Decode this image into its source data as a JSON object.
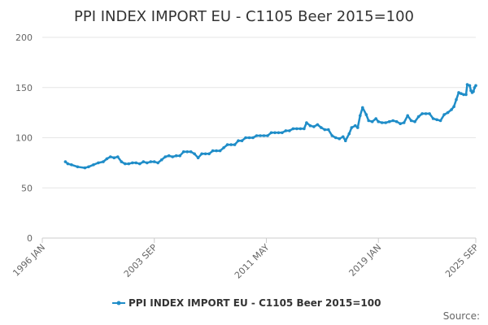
{
  "chart_data": {
    "type": "line",
    "title": "PPI INDEX IMPORT EU - C1105 Beer 2015=100",
    "xlabel": "",
    "ylabel": "",
    "ylim": [
      0,
      200
    ],
    "yticks": [
      "0",
      "50",
      "100",
      "150",
      "200"
    ],
    "xlim": [
      "1996-01",
      "2025-09"
    ],
    "xticks": [
      {
        "label": "1996 JAN",
        "date": "1996-01"
      },
      {
        "label": "2003 SEP",
        "date": "2003-09"
      },
      {
        "label": "2011 MAY",
        "date": "2011-05"
      },
      {
        "label": "2019 JAN",
        "date": "2019-01"
      },
      {
        "label": "2025 SEP",
        "date": "2025-09"
      }
    ],
    "grid": true,
    "legend_position": "bottom",
    "line_color": "#1f8dc8",
    "series": [
      {
        "name": "PPI INDEX IMPORT EU - C1105 Beer 2015=100",
        "points": [
          [
            "1997-08",
            76
          ],
          [
            "1997-10",
            74
          ],
          [
            "1998-01",
            73
          ],
          [
            "1998-06",
            71
          ],
          [
            "1998-12",
            70
          ],
          [
            "1999-03",
            71
          ],
          [
            "1999-07",
            73
          ],
          [
            "1999-11",
            75
          ],
          [
            "2000-03",
            76
          ],
          [
            "2000-06",
            79
          ],
          [
            "2000-09",
            81
          ],
          [
            "2000-12",
            80
          ],
          [
            "2001-03",
            81
          ],
          [
            "2001-06",
            76
          ],
          [
            "2001-09",
            74
          ],
          [
            "2001-12",
            74
          ],
          [
            "2002-03",
            75
          ],
          [
            "2002-06",
            75
          ],
          [
            "2002-09",
            74
          ],
          [
            "2002-12",
            76
          ],
          [
            "2003-03",
            75
          ],
          [
            "2003-06",
            76
          ],
          [
            "2003-09",
            76
          ],
          [
            "2003-12",
            75
          ],
          [
            "2004-03",
            78
          ],
          [
            "2004-06",
            81
          ],
          [
            "2004-09",
            82
          ],
          [
            "2004-12",
            81
          ],
          [
            "2005-03",
            82
          ],
          [
            "2005-06",
            82
          ],
          [
            "2005-09",
            86
          ],
          [
            "2005-12",
            86
          ],
          [
            "2006-03",
            86
          ],
          [
            "2006-06",
            84
          ],
          [
            "2006-09",
            80
          ],
          [
            "2006-12",
            84
          ],
          [
            "2007-03",
            84
          ],
          [
            "2007-06",
            84
          ],
          [
            "2007-09",
            87
          ],
          [
            "2007-12",
            87
          ],
          [
            "2008-03",
            87
          ],
          [
            "2008-06",
            90
          ],
          [
            "2008-09",
            93
          ],
          [
            "2008-12",
            93
          ],
          [
            "2009-03",
            93
          ],
          [
            "2009-06",
            97
          ],
          [
            "2009-09",
            97
          ],
          [
            "2009-12",
            100
          ],
          [
            "2010-03",
            100
          ],
          [
            "2010-06",
            100
          ],
          [
            "2010-09",
            102
          ],
          [
            "2010-12",
            102
          ],
          [
            "2011-03",
            102
          ],
          [
            "2011-06",
            102
          ],
          [
            "2011-09",
            105
          ],
          [
            "2011-12",
            105
          ],
          [
            "2012-03",
            105
          ],
          [
            "2012-06",
            105
          ],
          [
            "2012-09",
            107
          ],
          [
            "2012-12",
            107
          ],
          [
            "2013-03",
            109
          ],
          [
            "2013-06",
            109
          ],
          [
            "2013-09",
            109
          ],
          [
            "2013-12",
            109
          ],
          [
            "2014-02",
            115
          ],
          [
            "2014-05",
            112
          ],
          [
            "2014-08",
            111
          ],
          [
            "2014-11",
            113
          ],
          [
            "2015-02",
            110
          ],
          [
            "2015-05",
            108
          ],
          [
            "2015-08",
            108
          ],
          [
            "2015-11",
            102
          ],
          [
            "2016-02",
            100
          ],
          [
            "2016-05",
            99
          ],
          [
            "2016-08",
            101
          ],
          [
            "2016-10",
            97
          ],
          [
            "2017-01",
            104
          ],
          [
            "2017-03",
            110
          ],
          [
            "2017-06",
            112
          ],
          [
            "2017-08",
            110
          ],
          [
            "2017-10",
            122
          ],
          [
            "2017-12",
            130
          ],
          [
            "2018-03",
            123
          ],
          [
            "2018-05",
            117
          ],
          [
            "2018-08",
            116
          ],
          [
            "2018-11",
            119
          ],
          [
            "2019-01",
            116
          ],
          [
            "2019-04",
            115
          ],
          [
            "2019-07",
            115
          ],
          [
            "2019-10",
            116
          ],
          [
            "2020-01",
            117
          ],
          [
            "2020-04",
            116
          ],
          [
            "2020-07",
            114
          ],
          [
            "2020-10",
            115
          ],
          [
            "2021-01",
            122
          ],
          [
            "2021-04",
            117
          ],
          [
            "2021-07",
            116
          ],
          [
            "2021-10",
            121
          ],
          [
            "2022-01",
            124
          ],
          [
            "2022-04",
            124
          ],
          [
            "2022-07",
            124
          ],
          [
            "2022-10",
            119
          ],
          [
            "2023-01",
            118
          ],
          [
            "2023-04",
            117
          ],
          [
            "2023-07",
            123
          ],
          [
            "2023-10",
            125
          ],
          [
            "2024-01",
            128
          ],
          [
            "2024-03",
            131
          ],
          [
            "2024-05",
            138
          ],
          [
            "2024-07",
            145
          ],
          [
            "2024-09",
            144
          ],
          [
            "2024-11",
            143
          ],
          [
            "2025-01",
            143
          ],
          [
            "2025-02",
            153
          ],
          [
            "2025-04",
            152
          ],
          [
            "2025-05",
            147
          ],
          [
            "2025-06",
            145
          ],
          [
            "2025-07",
            146
          ],
          [
            "2025-08",
            150
          ],
          [
            "2025-09",
            152
          ]
        ]
      }
    ],
    "source_label": "Source:"
  }
}
